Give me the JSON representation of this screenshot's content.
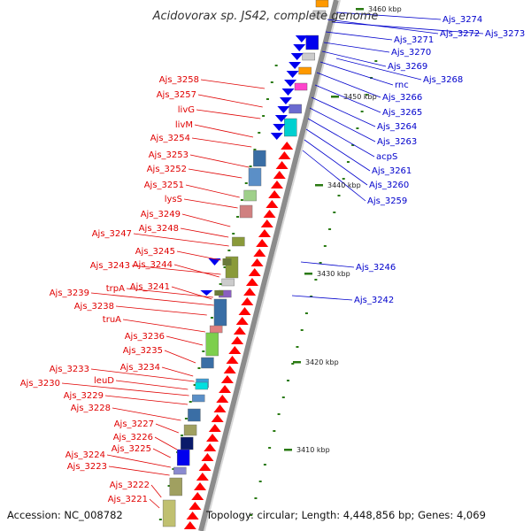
{
  "title": "Acidovorax sp. JS42, complete genome",
  "footer": {
    "accession": "Accession: NC_008782",
    "summary": "Topology: circular; Length: 4,448,856 bp; Genes: 4,069"
  },
  "colors": {
    "backbone": "#8c8c8c",
    "plus_strand_labels": "#0000cc",
    "minus_strand_labels": "#e00000",
    "tick": "#2a7a12"
  },
  "scale_markers": [
    "3460 kbp",
    "3450 kbp",
    "3440 kbp",
    "3430 kbp",
    "3420 kbp",
    "3410 kbp"
  ],
  "plus_strand_genes": [
    "Ajs_3274",
    "Ajs_3272",
    "Ajs_3273",
    "Ajs_3271",
    "Ajs_3270",
    "Ajs_3269",
    "Ajs_3268",
    "rnc",
    "Ajs_3266",
    "Ajs_3265",
    "Ajs_3264",
    "Ajs_3263",
    "acpS",
    "Ajs_3261",
    "Ajs_3260",
    "Ajs_3259",
    "Ajs_3246",
    "Ajs_3242"
  ],
  "minus_strand_genes": [
    "Ajs_3258",
    "Ajs_3257",
    "livG",
    "livM",
    "Ajs_3254",
    "Ajs_3253",
    "Ajs_3252",
    "Ajs_3251",
    "lysS",
    "Ajs_3249",
    "Ajs_3248",
    "Ajs_3247",
    "Ajs_3245",
    "Ajs_3244",
    "Ajs_3243",
    "Ajs_3241",
    "trpA",
    "Ajs_3239",
    "Ajs_3238",
    "truA",
    "Ajs_3236",
    "Ajs_3235",
    "Ajs_3234",
    "Ajs_3233",
    "leuD",
    "Ajs_3230",
    "Ajs_3229",
    "Ajs_3228",
    "Ajs_3227",
    "Ajs_3226",
    "Ajs_3225",
    "Ajs_3224",
    "Ajs_3223",
    "Ajs_3222",
    "Ajs_3221"
  ]
}
